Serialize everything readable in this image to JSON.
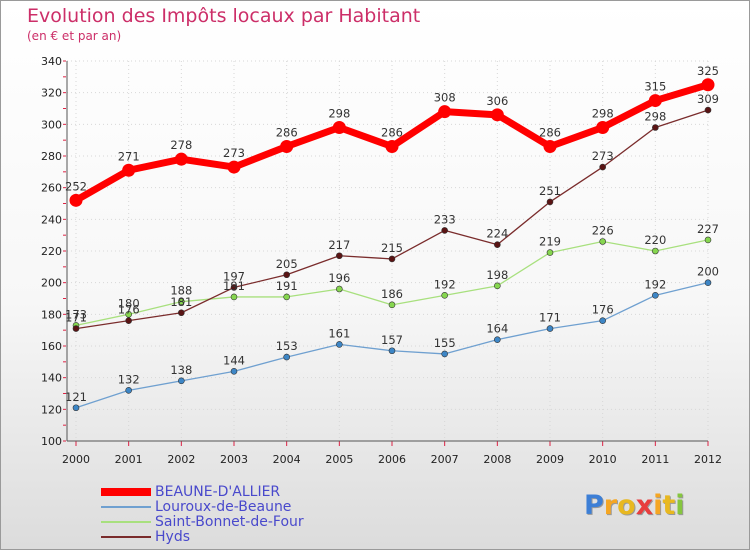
{
  "chart_data": {
    "type": "line",
    "title": "Evolution des Impôts locaux par Habitant",
    "subtitle": "(en € et par an)",
    "x": [
      "2000",
      "2001",
      "2002",
      "2003",
      "2004",
      "2005",
      "2006",
      "2007",
      "2008",
      "2009",
      "2010",
      "2011",
      "2012"
    ],
    "ylim": [
      100,
      340
    ],
    "yticks": [
      100,
      120,
      140,
      160,
      180,
      200,
      220,
      240,
      260,
      280,
      300,
      320,
      340
    ],
    "grid": true,
    "legend_position": "bottom-left",
    "series": [
      {
        "name": "BEAUNE-D'ALLIER",
        "color": "#ff0000",
        "marker_color": "#ff0000",
        "weight": "thick",
        "values": [
          252,
          271,
          278,
          273,
          286,
          298,
          286,
          308,
          306,
          286,
          298,
          315,
          325
        ]
      },
      {
        "name": "Louroux-de-Beaune",
        "color": "#6fa0d0",
        "marker_color": "#3d86c6",
        "weight": "thin",
        "values": [
          121,
          132,
          138,
          144,
          153,
          161,
          157,
          155,
          164,
          171,
          176,
          192,
          200
        ]
      },
      {
        "name": "Saint-Bonnet-de-Four",
        "color": "#a8e07e",
        "marker_color": "#86d64f",
        "weight": "thin",
        "values": [
          173,
          180,
          188,
          191,
          191,
          196,
          186,
          192,
          198,
          219,
          226,
          220,
          227
        ]
      },
      {
        "name": "Hyds",
        "color": "#7a2c2c",
        "marker_color": "#5a1414",
        "weight": "thin",
        "values": [
          171,
          176,
          181,
          197,
          205,
          217,
          215,
          233,
          224,
          251,
          273,
          298,
          309
        ]
      }
    ]
  },
  "branding": {
    "logo_letters": [
      "P",
      "r",
      "o",
      "x",
      "i",
      "t",
      "i"
    ],
    "logo_colors": [
      "#3d7fd6",
      "#f5a623",
      "#e8b820",
      "#e83e3e",
      "#f5a623",
      "#e8b820",
      "#86c63f"
    ]
  }
}
